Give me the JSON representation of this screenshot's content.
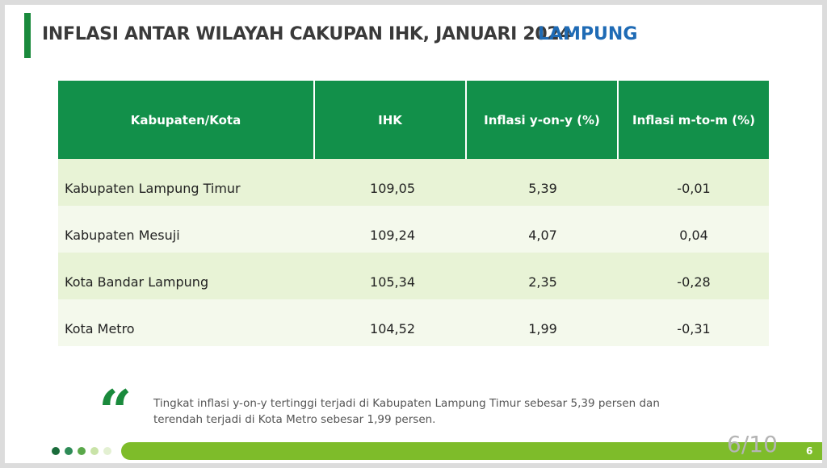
{
  "header": {
    "title": "INFLASI ANTAR WILAYAH CAKUPAN IHK, JANUARI 2024",
    "region": "LAMPUNG"
  },
  "table": {
    "headers": [
      "Kabupaten/Kota",
      "IHK",
      "Inflasi y-on-y (%)",
      "Inflasi m-to-m (%)"
    ],
    "rows": [
      {
        "name": "Kabupaten Lampung Timur",
        "ihk": "109,05",
        "yoy": "5,39",
        "mtm": "-0,01"
      },
      {
        "name": "Kabupaten Mesuji",
        "ihk": "109,24",
        "yoy": "4,07",
        "mtm": "0,04"
      },
      {
        "name": "Kota Bandar Lampung",
        "ihk": "105,34",
        "yoy": "2,35",
        "mtm": "-0,28"
      },
      {
        "name": "Kota Metro",
        "ihk": "104,52",
        "yoy": "1,99",
        "mtm": "-0,31"
      }
    ]
  },
  "note": {
    "quote_glyph": "“",
    "line1": "Tingkat inflasi y-on-y tertinggi terjadi di Kabupaten Lampung Timur sebesar 5,39 persen dan",
    "line2": "terendah terjadi di Kota Metro sebesar 1,99 persen."
  },
  "footer": {
    "page_fraction": "6/10",
    "page_number": "6",
    "dot_colors": [
      "#1a6b3a",
      "#2e8b57",
      "#5aa84a",
      "#c9e3a8",
      "#e3f0d2"
    ],
    "bar_color": "#7ebc2a"
  },
  "colors": {
    "accent_green": "#12904a",
    "region_blue": "#1f6bb5"
  }
}
